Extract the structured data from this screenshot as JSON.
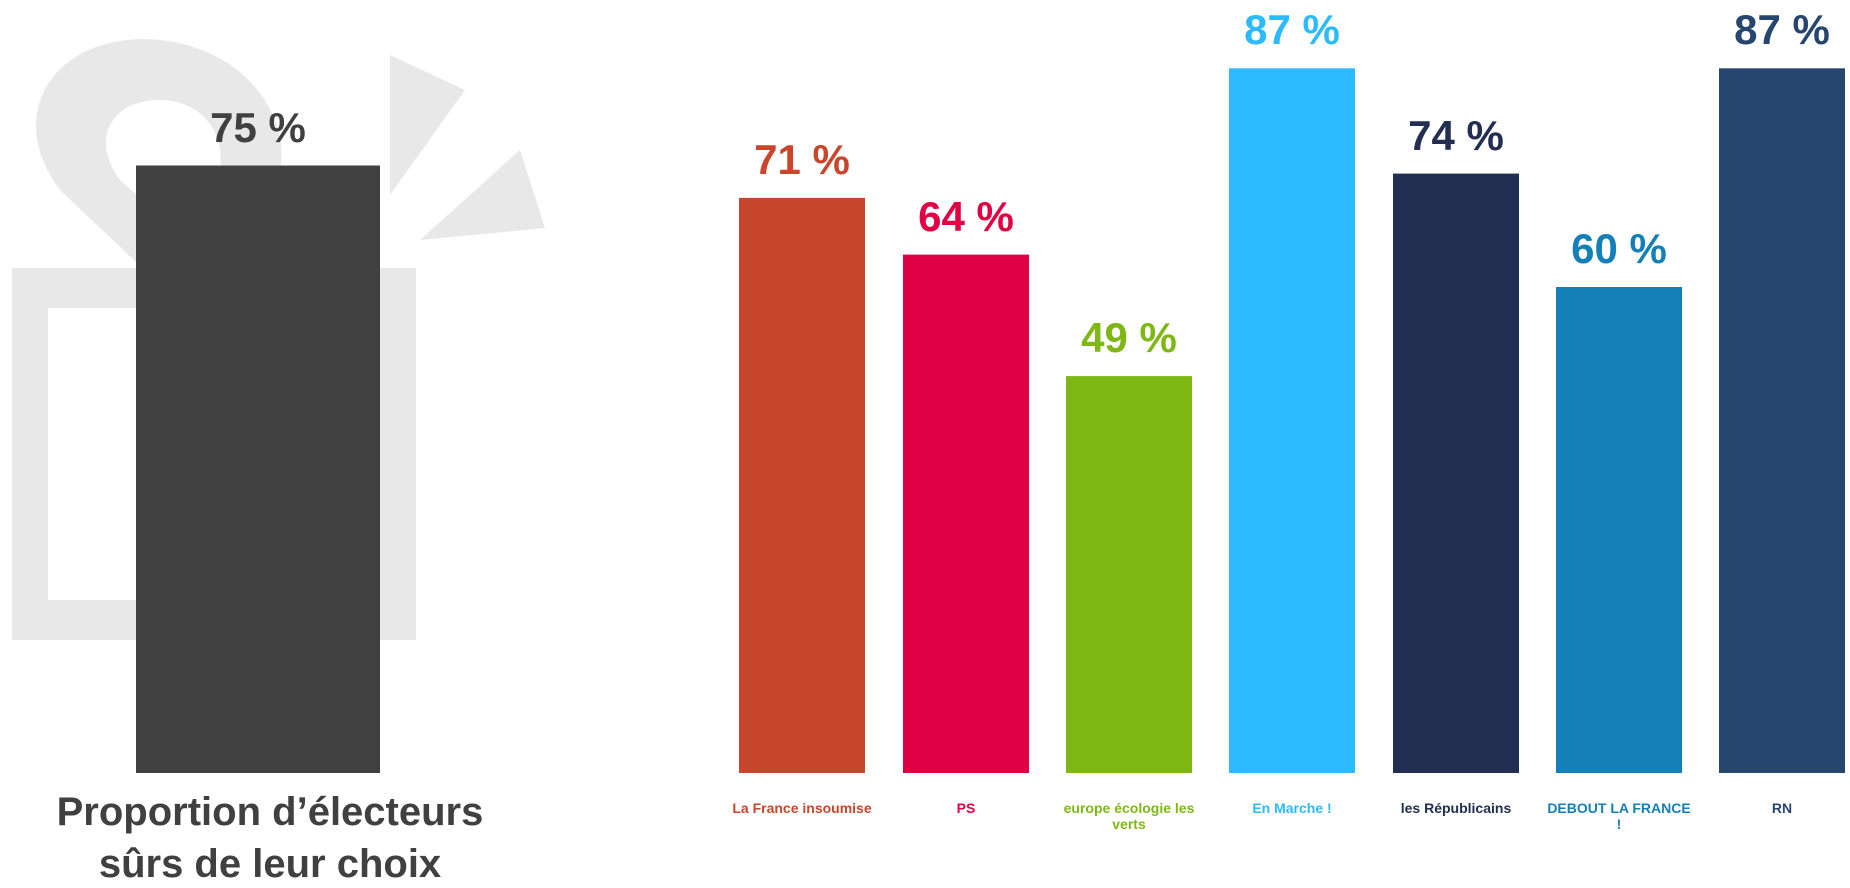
{
  "chart_data": [
    {
      "type": "bar",
      "categories": [
        "Proportion d’électeurs sûrs de leur choix"
      ],
      "values": [
        75
      ],
      "value_labels": [
        "75 %"
      ],
      "colors": [
        "#404040"
      ]
    },
    {
      "type": "bar",
      "categories": [
        "La France insoumise",
        "PS",
        "europe écologie les verts",
        "En Marche !",
        "les Républicains",
        "DEBOUT LA FRANCE !",
        "RN"
      ],
      "values": [
        71,
        64,
        49,
        87,
        74,
        60,
        87
      ],
      "value_labels": [
        "71 %",
        "64 %",
        "49 %",
        "87 %",
        "74 %",
        "60 %",
        "87 %"
      ],
      "colors": [
        "#c8462b",
        "#e20044",
        "#7fb714",
        "#2dbbff",
        "#222e52",
        "#1580b8",
        "#27466f"
      ]
    }
  ]
}
